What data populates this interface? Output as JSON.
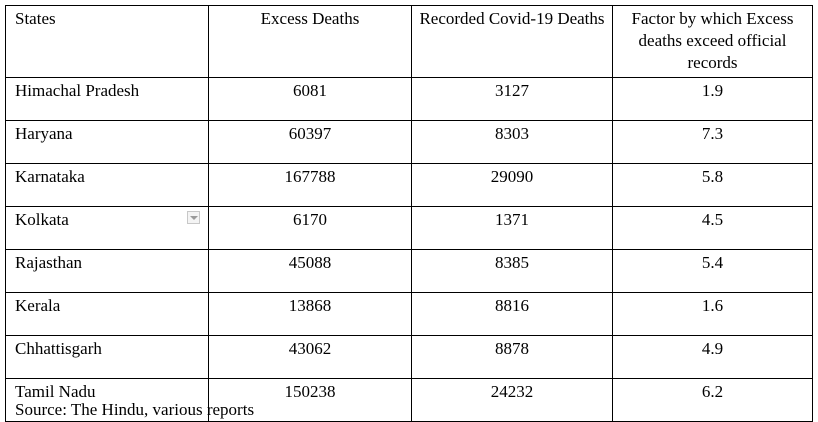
{
  "table": {
    "headers": [
      "States",
      "Excess Deaths",
      "Recorded Covid-19 Deaths",
      "Factor by which Excess deaths exceed official records"
    ],
    "rows": [
      {
        "state": "Himachal Pradesh",
        "excess": "6081",
        "recorded": "3127",
        "factor": "1.9"
      },
      {
        "state": "Haryana",
        "excess": "60397",
        "recorded": "8303",
        "factor": "7.3"
      },
      {
        "state": "Karnataka",
        "excess": "167788",
        "recorded": "29090",
        "factor": "5.8"
      },
      {
        "state": "Kolkata",
        "excess": "6170",
        "recorded": "1371",
        "factor": "4.5"
      },
      {
        "state": "Rajasthan",
        "excess": "45088",
        "recorded": "8385",
        "factor": "5.4"
      },
      {
        "state": "Kerala",
        "excess": "13868",
        "recorded": "8816",
        "factor": "1.6"
      },
      {
        "state": "Chhattisgarh",
        "excess": "43062",
        "recorded": "8878",
        "factor": "4.9"
      },
      {
        "state": "Tamil Nadu",
        "excess": "150238",
        "recorded": "24232",
        "factor": "6.2"
      }
    ]
  },
  "source": "Source: The Hindu, various reports",
  "icons": {
    "filter_dropdown": "chevron-down-icon"
  }
}
